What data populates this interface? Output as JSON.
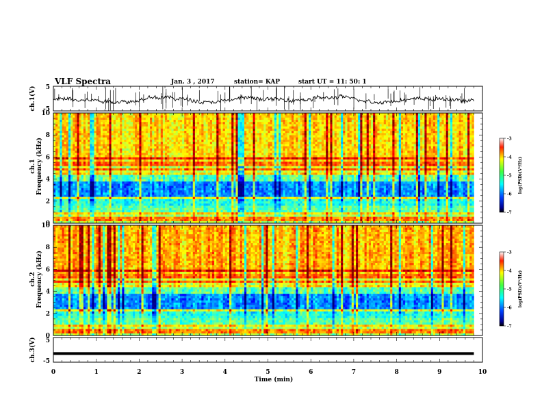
{
  "header": {
    "title": "VLF Spectra",
    "date": "Jan. 3 , 2017",
    "station": "station= KAP",
    "start": "start  UT =   11: 50: 1"
  },
  "chart_data": [
    {
      "type": "line",
      "panel": "ch1-waveform",
      "ylabel": "ch.1(V)",
      "ylim": [
        -5,
        5
      ],
      "y_ticks": [
        "5",
        "-5"
      ],
      "xlim": [
        0,
        10
      ],
      "description_values": "noisy waveform around -0.5 V with spikes up to ±5 V"
    },
    {
      "type": "heatmap",
      "panel": "ch1-spectrogram",
      "ylabel": "ch.1\nFrequency  (kHz)",
      "ylabel_lines": [
        "ch.1",
        "Frequency  (kHz)"
      ],
      "ylim": [
        0,
        10
      ],
      "y_ticks": [
        "0",
        "2",
        "4",
        "6",
        "8",
        "10"
      ],
      "xlim": [
        0,
        10
      ],
      "colorbar": {
        "label": "log(PSD)(V²/Hz)",
        "range": [
          -7,
          -3
        ],
        "ticks": [
          "-3",
          "-4",
          "-5",
          "-6",
          "-7"
        ]
      }
    },
    {
      "type": "heatmap",
      "panel": "ch2-spectrogram",
      "ylabel": "ch.2\nFrequency  (kHz)",
      "ylabel_lines": [
        "ch.2",
        "Frequency  (kHz)"
      ],
      "ylim": [
        0,
        10
      ],
      "y_ticks": [
        "0",
        "2",
        "4",
        "6",
        "8",
        "10"
      ],
      "xlim": [
        0,
        10
      ],
      "colorbar": {
        "label": "log(PSD)(V²/Hz)",
        "range": [
          -7,
          -3
        ],
        "ticks": [
          "-3",
          "-4",
          "-5",
          "-6",
          "-7"
        ]
      }
    },
    {
      "type": "line",
      "panel": "ch3-waveform",
      "ylabel": "ch.3(V)",
      "ylim": [
        -5,
        5
      ],
      "y_ticks": [
        "5",
        "-5"
      ],
      "xlim": [
        0,
        10
      ],
      "x": [
        0,
        9.8
      ],
      "y": [
        -1.5,
        -1.5
      ]
    }
  ],
  "xaxis": {
    "label": "Time  (min)",
    "ticks": [
      "0",
      "1",
      "2",
      "3",
      "4",
      "5",
      "6",
      "7",
      "8",
      "9",
      "10"
    ]
  },
  "colors": {
    "jet_low": "#000080",
    "jet_high": "#800000"
  }
}
